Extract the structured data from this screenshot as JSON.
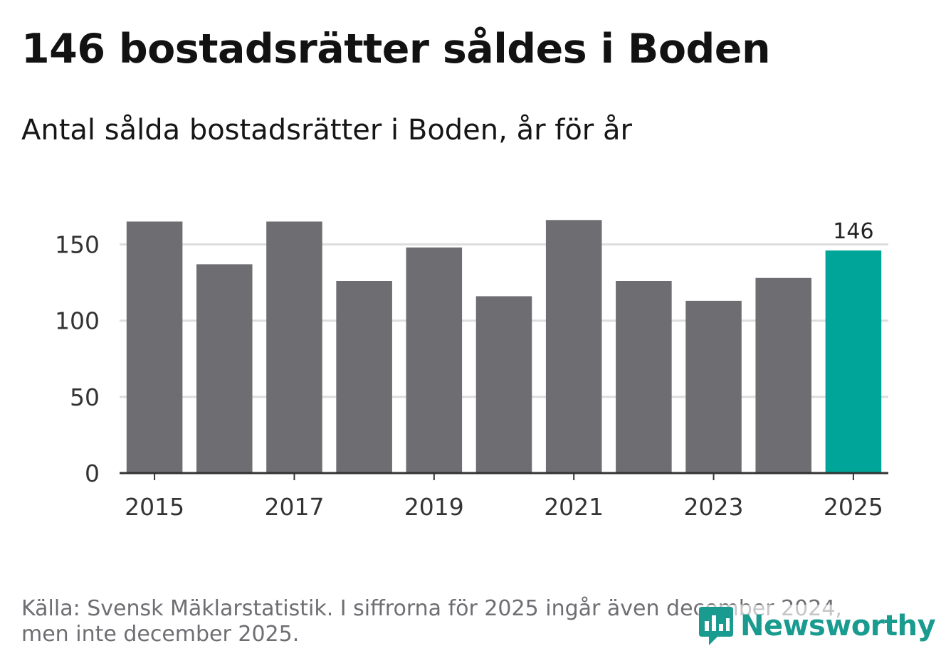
{
  "title": "146 bostadsrätter såldes i Boden",
  "subtitle": "Antal sålda bostadsrätter i Boden, år för år",
  "footer": {
    "line1": "Källa: Svensk Mäklarstatistik. I siffrorna för 2025 ingår även december 2024,",
    "line2": "men inte december 2025."
  },
  "brand": {
    "name": "Newsworthy",
    "color": "#199b8f"
  },
  "colors": {
    "bar": "#6e6d72",
    "highlight": "#00a59a",
    "grid": "#dddddd",
    "axis": "#333333"
  },
  "chart_data": {
    "type": "bar",
    "title": "Antal sålda bostadsrätter i Boden, år för år",
    "xlabel": "",
    "ylabel": "",
    "categories": [
      "2015",
      "2016",
      "2017",
      "2018",
      "2019",
      "2020",
      "2021",
      "2022",
      "2023",
      "2024",
      "2025"
    ],
    "values": [
      165,
      137,
      165,
      126,
      148,
      116,
      166,
      126,
      113,
      128,
      146
    ],
    "x_tick_labels": [
      "2015",
      "2017",
      "2019",
      "2021",
      "2023",
      "2025"
    ],
    "y_ticks": [
      0,
      50,
      100,
      150
    ],
    "ylim": [
      0,
      175
    ],
    "grid": true,
    "highlight": {
      "category": "2025",
      "label": "146"
    }
  }
}
